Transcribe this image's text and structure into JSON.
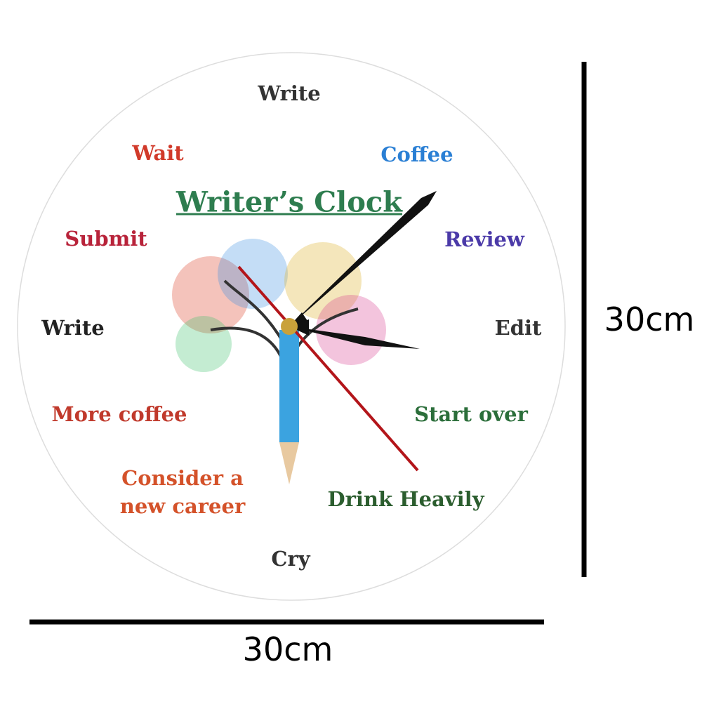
{
  "clock": {
    "title": "Writer’s Clock",
    "labels": [
      "Write",
      "Coffee",
      "Review",
      "Edit",
      "Start over",
      "Drink Heavily",
      "Cry",
      "Consider a new career",
      "More coffee",
      "Write",
      "Submit",
      "Wait"
    ]
  },
  "dimensions": {
    "width": "30cm",
    "height": "30cm"
  }
}
